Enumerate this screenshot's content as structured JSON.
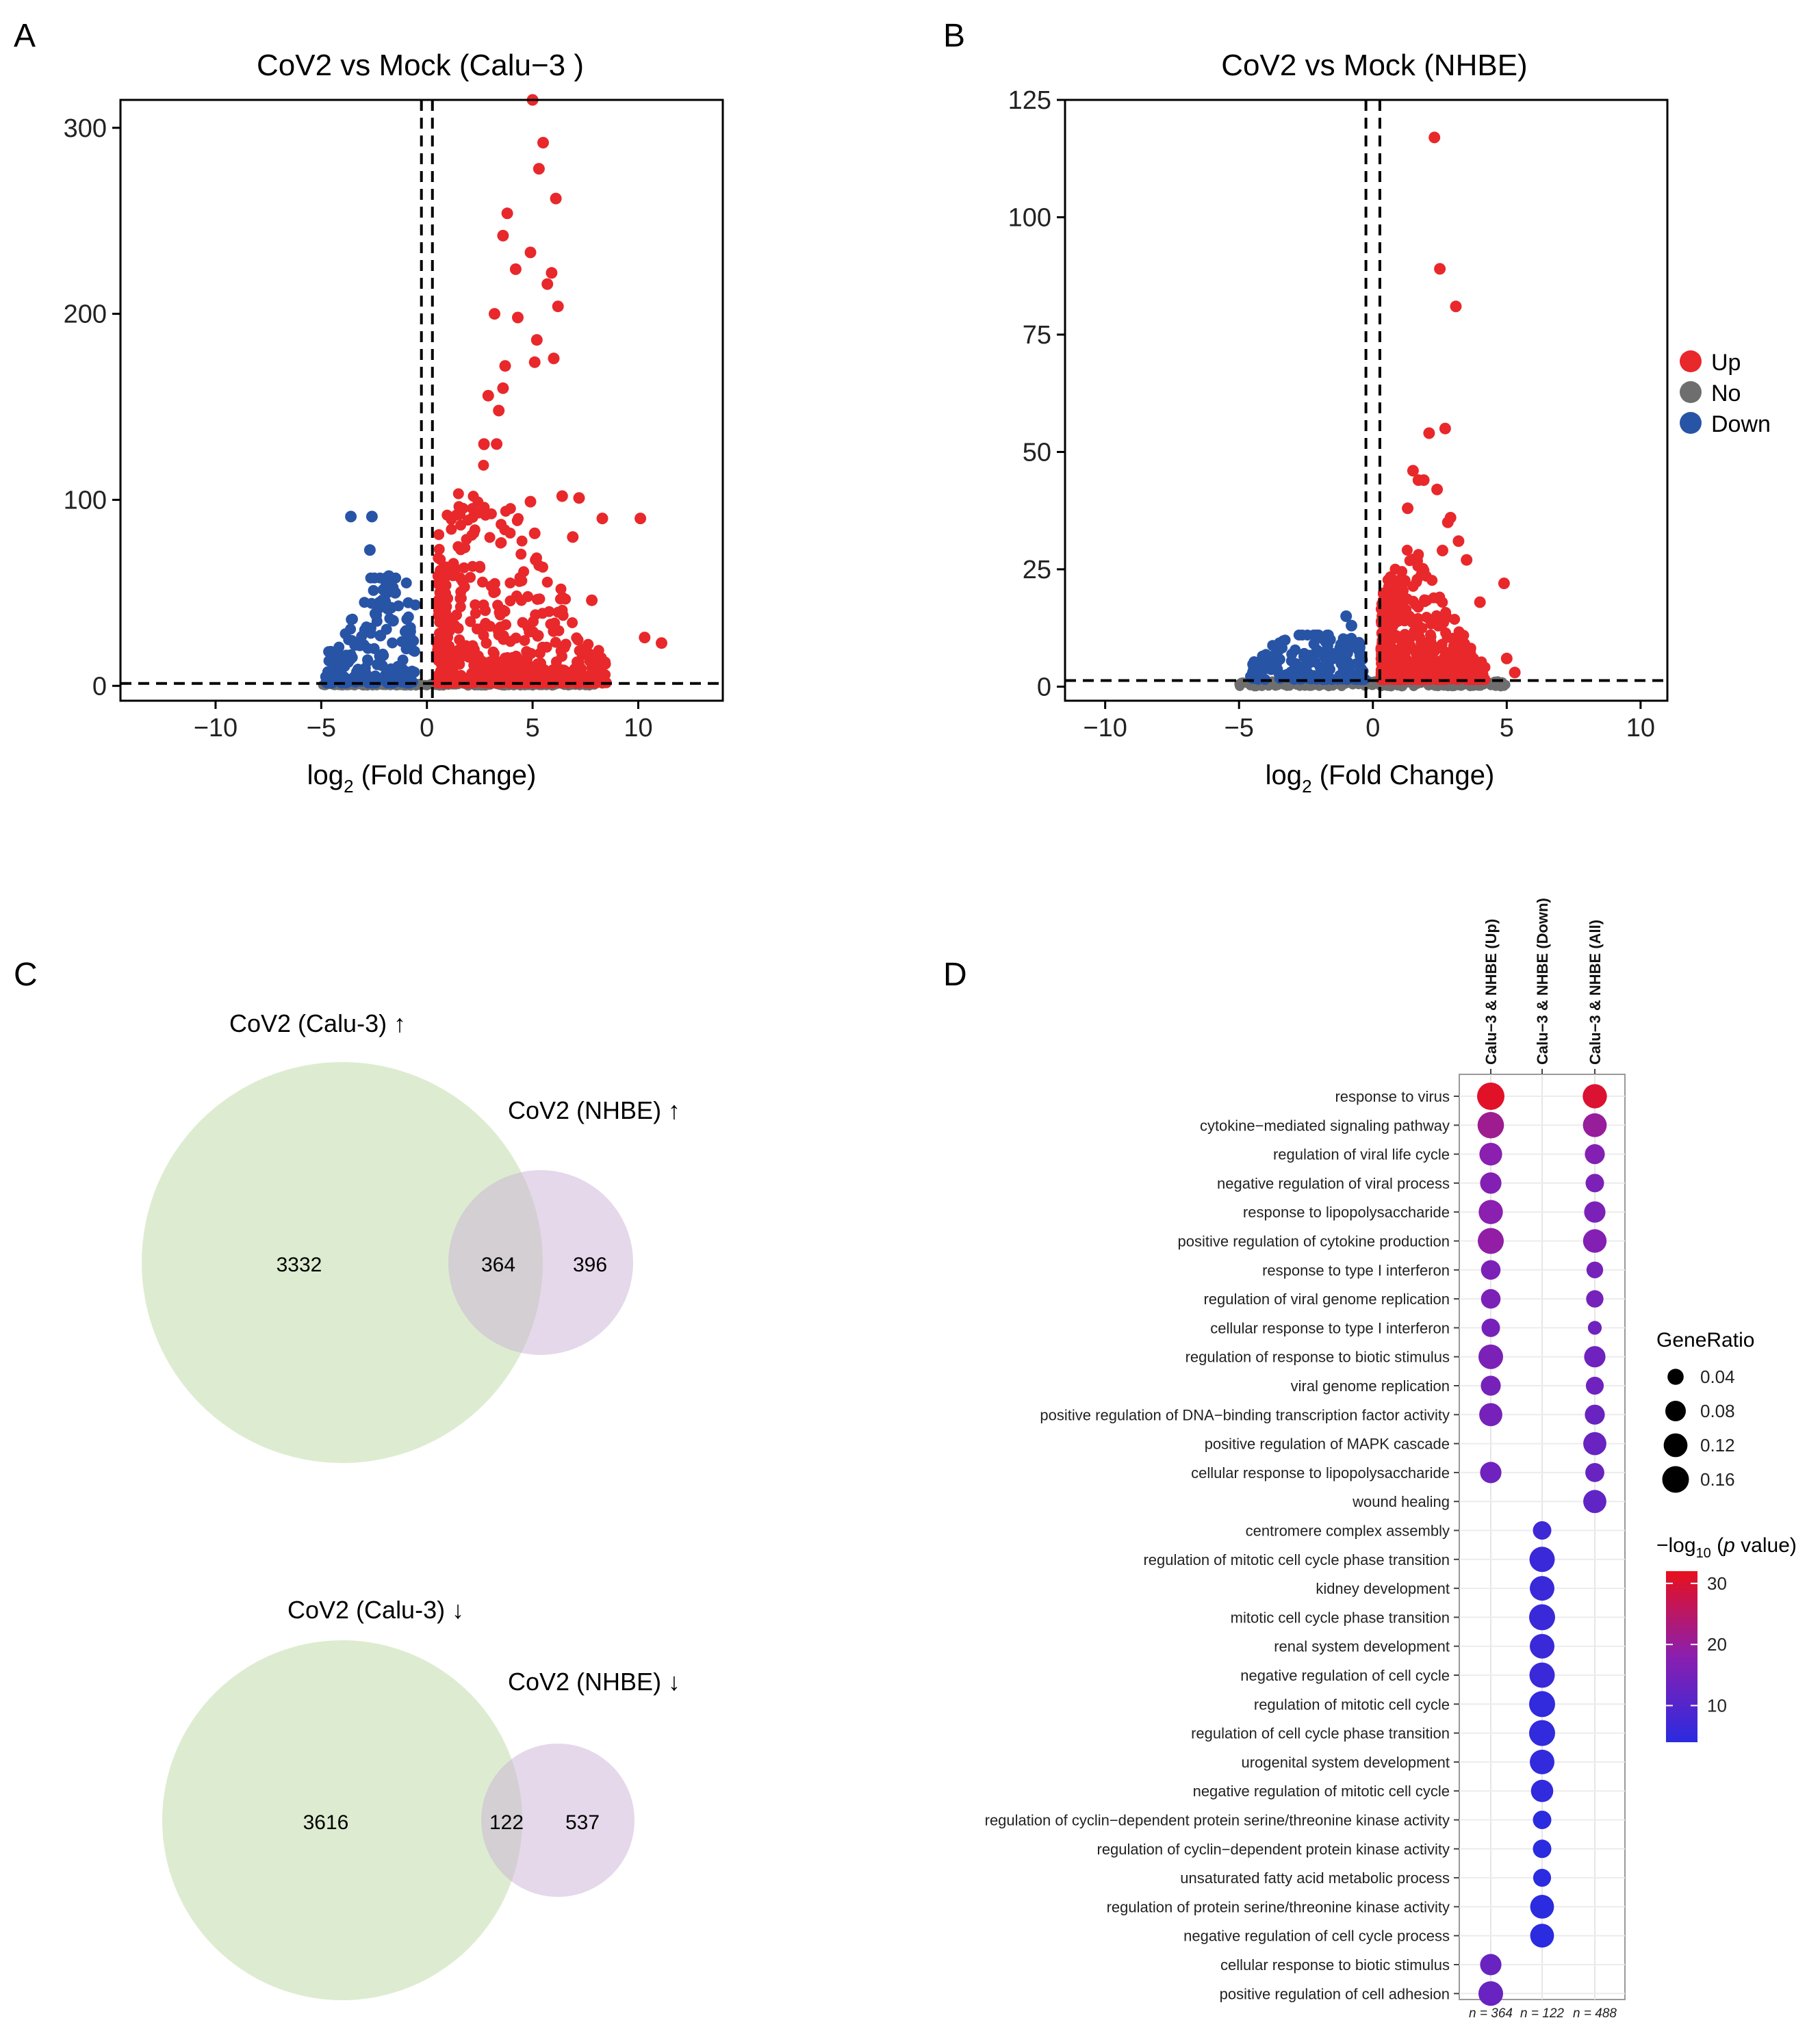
{
  "panels": {
    "a": "A",
    "b": "B",
    "c": "C",
    "d": "D"
  },
  "colors": {
    "up": "#E8282B",
    "no": "#6E6E6E",
    "down": "#2854A6",
    "venn_left": "#D9EACB",
    "venn_right": "#D6C6DF",
    "grad_low": "#2B2BE0",
    "grad_mid": "#8A1FB0",
    "grad_high": "#E8101C"
  },
  "chart_data": [
    {
      "id": "A",
      "type": "scatter",
      "title": "CoV2 vs Mock (Calu−3 )",
      "xlabel_main": "log",
      "xlabel_sub": "2",
      "xlabel_rest": " (Fold Change)",
      "ylabel": "",
      "xlim": [
        -14.5,
        14
      ],
      "ylim": [
        -8,
        315
      ],
      "xticks": [
        -10,
        -5,
        0,
        5,
        10
      ],
      "yticks": [
        0,
        100,
        200,
        300
      ],
      "xtick_labels": [
        "−10",
        "−5",
        "0",
        "5",
        "10"
      ],
      "ytick_labels": [
        "0",
        "100",
        "200",
        "300"
      ],
      "vlines": [
        -0.26,
        0.26
      ],
      "hline": 1.3,
      "down_spread": {
        "xmin": -4.8,
        "xmax": -0.5,
        "ymax": 58
      },
      "up_spread": {
        "xmin": 0.5,
        "xmax": 8.5,
        "ymax": 130
      },
      "grey_xmin": -5,
      "grey_xmax": 8,
      "points_down": [
        [
          -3.6,
          91
        ],
        [
          -2.6,
          91
        ],
        [
          -2.7,
          73
        ],
        [
          -1.8,
          59
        ],
        [
          -1.9,
          55
        ],
        [
          -1.5,
          50
        ],
        [
          -2.1,
          46
        ],
        [
          -1.7,
          42
        ],
        [
          -2.4,
          38
        ],
        [
          -1.6,
          35
        ],
        [
          -2.9,
          30
        ],
        [
          -3.4,
          22
        ],
        [
          -2.2,
          27
        ],
        [
          -4.6,
          2
        ],
        [
          -4.2,
          4
        ]
      ],
      "points_up": [
        [
          5.0,
          315
        ],
        [
          5.5,
          292
        ],
        [
          5.3,
          278
        ],
        [
          6.1,
          262
        ],
        [
          3.8,
          254
        ],
        [
          3.6,
          242
        ],
        [
          4.9,
          233
        ],
        [
          4.2,
          224
        ],
        [
          5.9,
          222
        ],
        [
          5.7,
          216
        ],
        [
          6.2,
          204
        ],
        [
          3.2,
          200
        ],
        [
          4.3,
          198
        ],
        [
          5.2,
          186
        ],
        [
          6.0,
          176
        ],
        [
          5.1,
          174
        ],
        [
          3.7,
          172
        ],
        [
          3.6,
          160
        ],
        [
          2.9,
          156
        ],
        [
          3.4,
          148
        ],
        [
          2.7,
          130
        ],
        [
          3.3,
          130
        ],
        [
          6.4,
          102
        ],
        [
          7.2,
          101
        ],
        [
          4.9,
          99
        ],
        [
          8.3,
          90
        ],
        [
          10.1,
          90
        ],
        [
          5.1,
          82
        ],
        [
          6.9,
          80
        ],
        [
          7.8,
          46
        ],
        [
          10.3,
          26
        ],
        [
          11.1,
          23
        ],
        [
          8.0,
          12
        ],
        [
          7.0,
          9
        ]
      ],
      "legend": null
    },
    {
      "id": "B",
      "type": "scatter",
      "title": "CoV2 vs Mock (NHBE)",
      "xlabel_main": "log",
      "xlabel_sub": "2",
      "xlabel_rest": " (Fold Change)",
      "ylabel": "",
      "xlim": [
        -11.5,
        11
      ],
      "ylim": [
        -3,
        125
      ],
      "xticks": [
        -10,
        -5,
        0,
        5,
        10
      ],
      "yticks": [
        0,
        25,
        50,
        75,
        100,
        125
      ],
      "xtick_labels": [
        "−10",
        "−5",
        "0",
        "5",
        "10"
      ],
      "ytick_labels": [
        "0",
        "25",
        "50",
        "75",
        "100",
        "125"
      ],
      "vlines": [
        -0.26,
        0.26
      ],
      "hline": 1.3,
      "down_spread": {
        "xmin": -4.6,
        "xmax": -0.3,
        "ymax": 11
      },
      "up_spread": {
        "xmin": 0.3,
        "xmax": 4.2,
        "ymax": 30
      },
      "grey_xmin": -5,
      "grey_xmax": 5,
      "points_down": [
        [
          -1.0,
          15
        ],
        [
          -0.8,
          13
        ],
        [
          -1.6,
          10
        ],
        [
          -2.4,
          5
        ],
        [
          -4.3,
          2
        ]
      ],
      "points_up": [
        [
          2.3,
          117
        ],
        [
          2.5,
          89
        ],
        [
          3.1,
          81
        ],
        [
          2.7,
          55
        ],
        [
          2.1,
          54
        ],
        [
          1.5,
          46
        ],
        [
          1.7,
          44
        ],
        [
          1.9,
          44
        ],
        [
          2.4,
          42
        ],
        [
          1.3,
          38
        ],
        [
          2.9,
          36
        ],
        [
          2.8,
          35
        ],
        [
          3.2,
          31
        ],
        [
          2.6,
          29
        ],
        [
          3.5,
          27
        ],
        [
          4.9,
          22
        ],
        [
          4.0,
          18
        ],
        [
          5.0,
          6
        ],
        [
          5.3,
          3
        ]
      ],
      "legend": [
        {
          "label": "Up",
          "key": "up"
        },
        {
          "label": "No",
          "key": "no"
        },
        {
          "label": "Down",
          "key": "down"
        }
      ]
    },
    {
      "id": "C-top",
      "type": "venn",
      "left_label": "CoV2 (Calu-3) ↑",
      "right_label": "CoV2 (NHBE) ↑",
      "left_only": "3332",
      "overlap": "364",
      "right_only": "396"
    },
    {
      "id": "C-bottom",
      "type": "venn",
      "left_label": "CoV2 (Calu-3) ↓",
      "right_label": "CoV2 (NHBE) ↓",
      "left_only": "3616",
      "overlap": "122",
      "right_only": "537"
    },
    {
      "id": "D",
      "type": "dotplot",
      "columns": [
        "Calu−3 & NHBE (Up)",
        "Calu−3 & NHBE (Down)",
        "Calu−3 & NHBE (All)"
      ],
      "col_counts": [
        "n = 364",
        "n = 122",
        "n = 488"
      ],
      "terms": [
        {
          "label": "response to virus",
          "cells": [
            [
              0.17,
              31
            ],
            null,
            [
              0.125,
              30
            ]
          ]
        },
        {
          "label": "cytokine−mediated signaling pathway",
          "cells": [
            [
              0.155,
              21
            ],
            null,
            [
              0.12,
              20
            ]
          ]
        },
        {
          "label": "regulation of viral life cycle",
          "cells": [
            [
              0.105,
              18
            ],
            null,
            [
              0.075,
              17
            ]
          ]
        },
        {
          "label": "negative regulation of viral process",
          "cells": [
            [
              0.09,
              17
            ],
            null,
            [
              0.06,
              16
            ]
          ]
        },
        {
          "label": "response to lipopolysaccharide",
          "cells": [
            [
              0.125,
              18
            ],
            null,
            [
              0.09,
              16
            ]
          ]
        },
        {
          "label": "positive regulation of cytokine production",
          "cells": [
            [
              0.15,
              19
            ],
            null,
            [
              0.115,
              17
            ]
          ]
        },
        {
          "label": "response to type I interferon",
          "cells": [
            [
              0.07,
              16
            ],
            null,
            [
              0.045,
              15
            ]
          ]
        },
        {
          "label": "regulation of viral genome replication",
          "cells": [
            [
              0.07,
              16
            ],
            null,
            [
              0.05,
              15
            ]
          ]
        },
        {
          "label": "cellular response to type I interferon",
          "cells": [
            [
              0.06,
              15
            ],
            null,
            [
              0.025,
              14
            ]
          ]
        },
        {
          "label": "regulation of response to biotic stimulus",
          "cells": [
            [
              0.13,
              16
            ],
            null,
            [
              0.09,
              14
            ]
          ]
        },
        {
          "label": "viral genome replication",
          "cells": [
            [
              0.075,
              15
            ],
            null,
            [
              0.055,
              14
            ]
          ]
        },
        {
          "label": "positive regulation of DNA−binding transcription factor activity",
          "cells": [
            [
              0.11,
              15
            ],
            null,
            [
              0.075,
              13
            ]
          ]
        },
        {
          "label": "positive regulation of MAPK cascade",
          "cells": [
            null,
            null,
            [
              0.11,
              13
            ]
          ]
        },
        {
          "label": "cellular response to lipopolysaccharide",
          "cells": [
            [
              0.09,
              14
            ],
            null,
            [
              0.065,
              13
            ]
          ]
        },
        {
          "label": "wound healing",
          "cells": [
            null,
            null,
            [
              0.11,
              12
            ]
          ]
        },
        {
          "label": "centromere complex assembly",
          "cells": [
            null,
            [
              0.06,
              7
            ],
            null
          ]
        },
        {
          "label": "regulation of mitotic cell cycle phase transition",
          "cells": [
            null,
            [
              0.14,
              6
            ],
            null
          ]
        },
        {
          "label": "kidney development",
          "cells": [
            null,
            [
              0.13,
              6
            ],
            null
          ]
        },
        {
          "label": "mitotic cell cycle phase transition",
          "cells": [
            null,
            [
              0.15,
              6
            ],
            null
          ]
        },
        {
          "label": "renal system development",
          "cells": [
            null,
            [
              0.13,
              6
            ],
            null
          ]
        },
        {
          "label": "negative regulation of cell cycle",
          "cells": [
            null,
            [
              0.14,
              6
            ],
            null
          ]
        },
        {
          "label": "regulation of mitotic cell cycle",
          "cells": [
            null,
            [
              0.15,
              5
            ],
            null
          ]
        },
        {
          "label": "regulation of cell cycle phase transition",
          "cells": [
            null,
            [
              0.15,
              5
            ],
            null
          ]
        },
        {
          "label": "urogenital system development",
          "cells": [
            null,
            [
              0.13,
              5
            ],
            null
          ]
        },
        {
          "label": "negative regulation of mitotic cell cycle",
          "cells": [
            null,
            [
              0.1,
              5
            ],
            null
          ]
        },
        {
          "label": "regulation of cyclin−dependent protein serine/threonine kinase activity",
          "cells": [
            null,
            [
              0.06,
              4
            ],
            null
          ]
        },
        {
          "label": "regulation of cyclin−dependent protein kinase activity",
          "cells": [
            null,
            [
              0.06,
              4
            ],
            null
          ]
        },
        {
          "label": "unsaturated fatty acid metabolic process",
          "cells": [
            null,
            [
              0.055,
              4
            ],
            null
          ]
        },
        {
          "label": "regulation of protein serine/threonine kinase activity",
          "cells": [
            null,
            [
              0.12,
              4
            ],
            null
          ]
        },
        {
          "label": "negative regulation of cell cycle process",
          "cells": [
            null,
            [
              0.12,
              4
            ],
            null
          ]
        },
        {
          "label": "cellular response to biotic stimulus",
          "cells": [
            [
              0.09,
              13
            ],
            null,
            null
          ]
        },
        {
          "label": "positive regulation of cell adhesion",
          "cells": [
            [
              0.13,
              13
            ],
            null,
            null
          ]
        }
      ],
      "size_legend": {
        "title": "GeneRatio",
        "values": [
          0.04,
          0.08,
          0.12,
          0.16
        ],
        "labels": [
          "0.04",
          "0.08",
          "0.12",
          "0.16"
        ]
      },
      "color_legend": {
        "title_pre": "−log",
        "title_sub": "10",
        "title_mid": " (",
        "title_italic": "p",
        "title_post": " value)",
        "min": 4,
        "max": 32,
        "ticks": [
          10,
          20,
          30
        ],
        "tick_labels": [
          "10",
          "20",
          "30"
        ]
      }
    }
  ]
}
